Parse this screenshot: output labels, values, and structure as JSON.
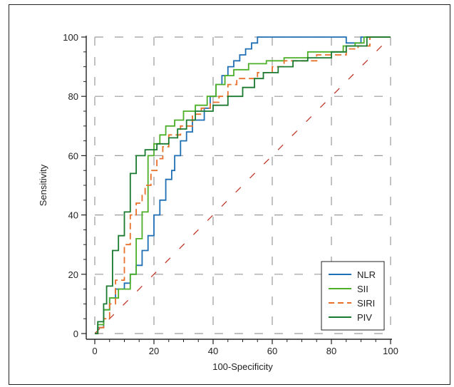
{
  "chart_data": {
    "type": "line",
    "title": "",
    "xlabel": "100-Specificity",
    "ylabel": "Sensitivity",
    "xlim": [
      0,
      100
    ],
    "ylim": [
      0,
      100
    ],
    "x_ticks": [
      "0",
      "20",
      "40",
      "60",
      "80",
      "100"
    ],
    "y_ticks": [
      "0",
      "20",
      "40",
      "60",
      "80",
      "100"
    ],
    "grid": true,
    "legend_position": "bottom-right",
    "reference_line": {
      "x": [
        0,
        100
      ],
      "y": [
        0,
        100
      ],
      "color": "#c0392b",
      "style": "dashed"
    },
    "series": [
      {
        "name": "NLR",
        "color": "#1f6fb5",
        "style": "solid",
        "x": [
          0,
          1,
          1,
          3,
          3,
          5,
          5,
          7,
          7,
          10,
          10,
          12,
          12,
          14,
          14,
          16,
          16,
          18,
          18,
          20,
          20,
          22,
          22,
          24,
          24,
          26,
          26,
          27,
          27,
          29,
          29,
          31,
          31,
          33,
          33,
          37,
          37,
          39,
          39,
          41,
          41,
          43,
          43,
          45,
          45,
          47,
          47,
          49,
          49,
          51,
          51,
          53,
          53,
          55,
          55,
          85,
          85,
          90,
          90,
          100
        ],
        "y": [
          0,
          0,
          2,
          2,
          8,
          8,
          12,
          12,
          15,
          15,
          17,
          17,
          20,
          20,
          23,
          23,
          28,
          28,
          33,
          33,
          40,
          40,
          45,
          45,
          52,
          52,
          55,
          55,
          60,
          60,
          65,
          65,
          68,
          68,
          72,
          72,
          76,
          76,
          80,
          80,
          84,
          84,
          87,
          87,
          90,
          90,
          92,
          92,
          94,
          94,
          96,
          96,
          98,
          98,
          100,
          100,
          98,
          98,
          100,
          100
        ]
      },
      {
        "name": "SII",
        "color": "#4caf28",
        "style": "solid",
        "x": [
          0,
          1,
          1,
          3,
          3,
          5,
          5,
          8,
          8,
          12,
          12,
          14,
          14,
          16,
          16,
          18,
          18,
          20,
          20,
          22,
          22,
          24,
          24,
          27,
          27,
          30,
          30,
          34,
          34,
          38,
          38,
          41,
          41,
          44,
          44,
          47,
          47,
          52,
          52,
          58,
          58,
          64,
          64,
          72,
          72,
          84,
          84,
          88,
          88,
          91,
          91,
          93,
          93,
          100
        ],
        "y": [
          0,
          0,
          3,
          3,
          8,
          8,
          12,
          12,
          15,
          15,
          20,
          20,
          32,
          32,
          41,
          41,
          60,
          60,
          64,
          64,
          67,
          67,
          70,
          70,
          72,
          72,
          75,
          75,
          77,
          77,
          80,
          80,
          84,
          84,
          87,
          87,
          89,
          89,
          91,
          91,
          92,
          92,
          93,
          93,
          95,
          95,
          97,
          97,
          98,
          98,
          100,
          100,
          100,
          100
        ]
      },
      {
        "name": "SIRI",
        "color": "#e8702a",
        "style": "dashed",
        "x": [
          0,
          1,
          1,
          3,
          3,
          5,
          5,
          7,
          7,
          10,
          10,
          12,
          12,
          14,
          14,
          16,
          16,
          17,
          17,
          19,
          19,
          21,
          21,
          23,
          23,
          25,
          25,
          29,
          29,
          33,
          33,
          36,
          36,
          39,
          39,
          42,
          42,
          45,
          45,
          48,
          48,
          55,
          55,
          60,
          60,
          64,
          64,
          75,
          75,
          85,
          85,
          89,
          89,
          93,
          93,
          100
        ],
        "y": [
          0,
          0,
          2,
          2,
          5,
          5,
          10,
          10,
          18,
          18,
          30,
          30,
          40,
          40,
          44,
          44,
          47,
          47,
          50,
          50,
          55,
          55,
          59,
          59,
          63,
          63,
          67,
          67,
          70,
          70,
          74,
          74,
          76,
          76,
          78,
          78,
          80,
          80,
          84,
          84,
          86,
          86,
          88,
          88,
          90,
          90,
          92,
          92,
          94,
          94,
          96,
          96,
          97,
          97,
          100,
          100
        ]
      },
      {
        "name": "PIV",
        "color": "#1a7a30",
        "style": "solid",
        "x": [
          0,
          1,
          1,
          3,
          3,
          4,
          4,
          6,
          6,
          8,
          8,
          10,
          10,
          12,
          12,
          14,
          14,
          17,
          17,
          21,
          21,
          25,
          25,
          28,
          28,
          31,
          31,
          34,
          34,
          40,
          40,
          45,
          45,
          50,
          50,
          54,
          54,
          57,
          57,
          62,
          62,
          67,
          67,
          72,
          72,
          80,
          80,
          85,
          85,
          92,
          92,
          100
        ],
        "y": [
          0,
          0,
          4,
          4,
          10,
          10,
          16,
          16,
          28,
          28,
          33,
          33,
          41,
          41,
          54,
          54,
          60,
          60,
          62,
          62,
          64,
          64,
          66,
          66,
          69,
          69,
          72,
          72,
          75,
          75,
          77,
          77,
          80,
          80,
          83,
          83,
          86,
          86,
          88,
          88,
          90,
          90,
          92,
          92,
          93,
          93,
          95,
          95,
          97,
          97,
          100,
          100
        ]
      }
    ]
  }
}
